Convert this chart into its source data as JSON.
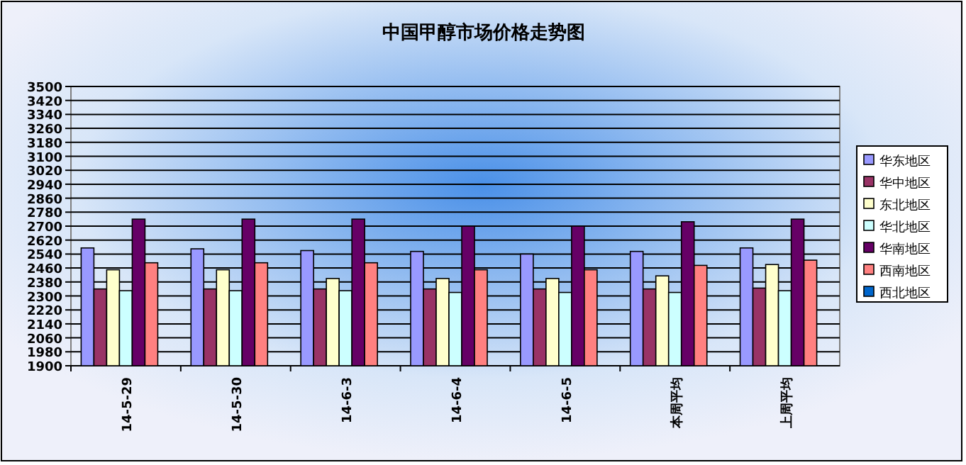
{
  "chart_data": {
    "type": "bar",
    "title": "中国甲醇市场价格走势图",
    "categories": [
      "14-5-29",
      "14-5-30",
      "14-6-3",
      "14-6-4",
      "14-6-5",
      "本周平均",
      "上周平均"
    ],
    "series": [
      {
        "name": "华东地区",
        "color": "#9999ff",
        "values": [
          2575,
          2570,
          2560,
          2555,
          2540,
          2555,
          2575
        ]
      },
      {
        "name": "华中地区",
        "color": "#993366",
        "values": [
          2340,
          2340,
          2340,
          2340,
          2340,
          2340,
          2345
        ]
      },
      {
        "name": "东北地区",
        "color": "#ffffcc",
        "values": [
          2450,
          2450,
          2400,
          2400,
          2400,
          2415,
          2480
        ]
      },
      {
        "name": "华北地区",
        "color": "#ccffff",
        "values": [
          2330,
          2330,
          2330,
          2320,
          2320,
          2320,
          2330
        ]
      },
      {
        "name": "华南地区",
        "color": "#660066",
        "values": [
          2740,
          2740,
          2740,
          2700,
          2700,
          2725,
          2740
        ]
      },
      {
        "name": "西南地区",
        "color": "#ff8080",
        "values": [
          2490,
          2490,
          2490,
          2450,
          2450,
          2475,
          2505
        ]
      },
      {
        "name": "西北地区",
        "color": "#0066cc",
        "values": [
          null,
          null,
          null,
          null,
          null,
          null,
          null
        ]
      }
    ],
    "ylim": [
      1900,
      3500
    ],
    "yticks": [
      1900,
      1980,
      2060,
      2140,
      2220,
      2300,
      2380,
      2460,
      2540,
      2620,
      2700,
      2780,
      2860,
      2940,
      3020,
      3100,
      3180,
      3260,
      3340,
      3420,
      3500
    ],
    "grid": "y",
    "legend": "right"
  }
}
